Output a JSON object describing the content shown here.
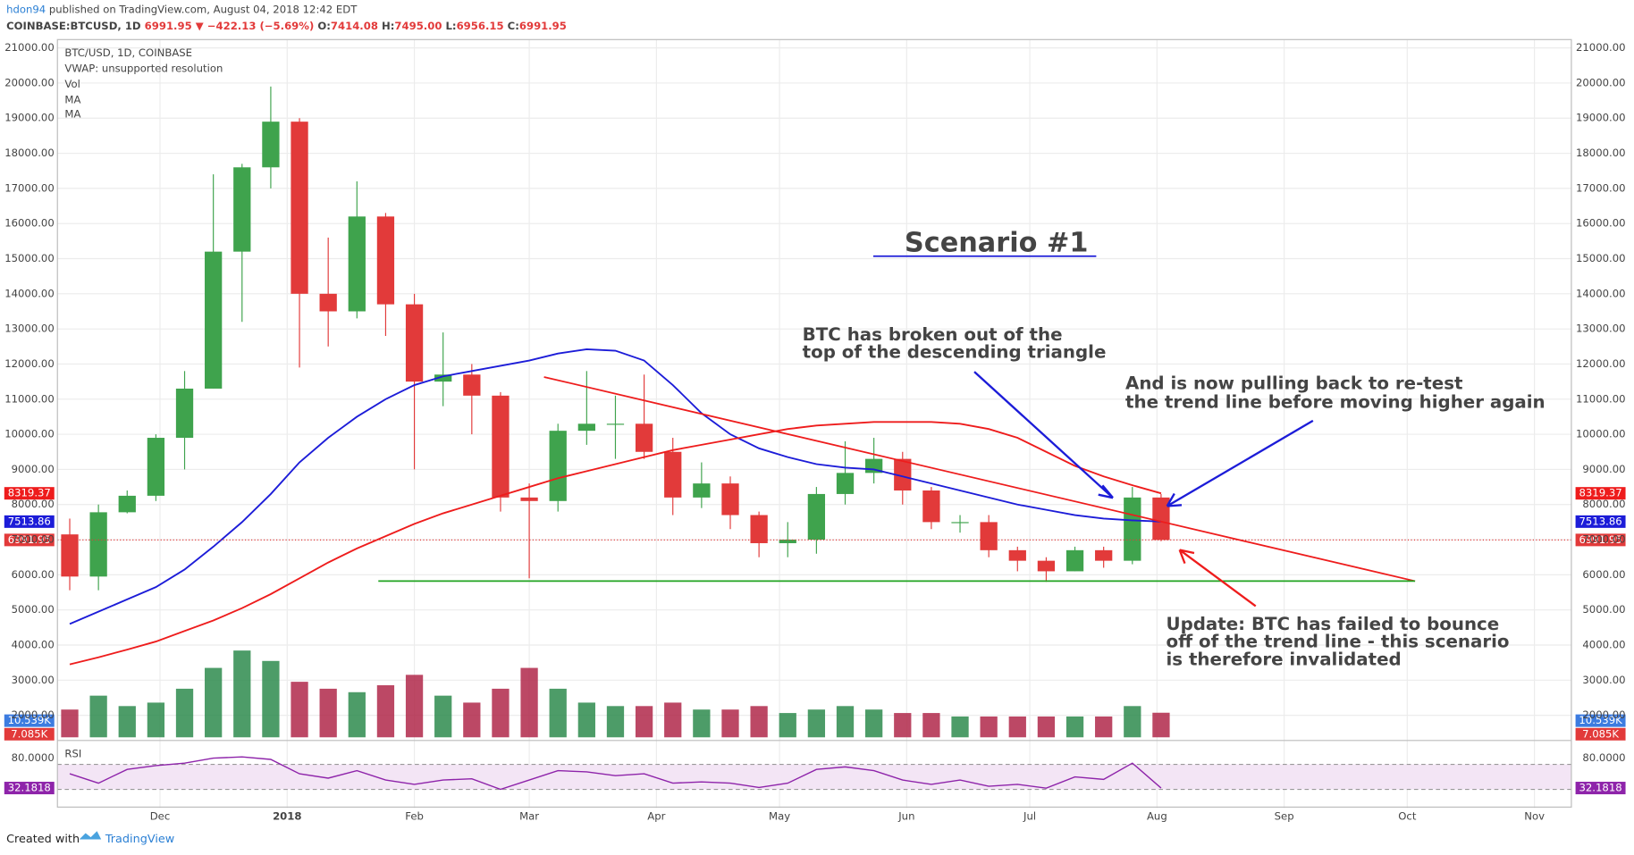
{
  "header": {
    "author": "hdon94",
    "published": "published on TradingView.com, August 04, 2018 12:42 EDT",
    "symbol": "COINBASE:BTCUSD, 1D",
    "last": "6991.95",
    "change": "▼ −422.13 (−5.69%)",
    "ohlc": [
      {
        "label": "O:",
        "value": "7414.08"
      },
      {
        "label": "H:",
        "value": "7495.00"
      },
      {
        "label": "L:",
        "value": "6956.15"
      },
      {
        "label": "C:",
        "value": "6991.95"
      }
    ]
  },
  "legend": [
    "VWAP: unsupported resolution",
    "Vol",
    "MA",
    "MA"
  ],
  "annotations": {
    "scenario": "Scenario #1",
    "broken": [
      "BTC has broken out of the",
      "top of the descending triangle"
    ],
    "pulling": [
      "And is now pulling back to re-test",
      "the trend line before moving higher again"
    ],
    "update": [
      "Update: BTC has failed to bounce",
      "off of the trend line - this scenario",
      "is therefore invalidated"
    ]
  },
  "footer": {
    "created": "Created with",
    "brand": "TradingView"
  },
  "chart_data": {
    "type": "candlestick",
    "title": "BTC/USD, 1D, COINBASE",
    "x": [
      0,
      7,
      14,
      21,
      28,
      35,
      42,
      49,
      56,
      63,
      70,
      77,
      84,
      91,
      98,
      105,
      112,
      119,
      126,
      133,
      140,
      147,
      154,
      161,
      168,
      175,
      182,
      189,
      196,
      203,
      210,
      217,
      224,
      231,
      238,
      245,
      252,
      259,
      266
    ],
    "open": [
      7150,
      5950,
      7780,
      8250,
      9900,
      11300,
      15200,
      17600,
      18900,
      14000,
      13500,
      16200,
      13700,
      11500,
      11700,
      11100,
      8200,
      8100,
      10100,
      10300,
      10300,
      9500,
      8200,
      8600,
      7700,
      6900,
      7000,
      8300,
      8900,
      9300,
      8400,
      7500,
      7500,
      6700,
      6400,
      6100,
      6700,
      6400,
      8200
    ],
    "high": [
      7600,
      8000,
      8400,
      10000,
      11800,
      17400,
      17700,
      19900,
      19000,
      15600,
      17200,
      16300,
      14000,
      12900,
      12000,
      11200,
      8600,
      10300,
      11800,
      11100,
      11700,
      9900,
      9200,
      8800,
      7800,
      7500,
      8500,
      9800,
      9900,
      9500,
      8500,
      7700,
      7700,
      6800,
      6500,
      6800,
      6800,
      8500,
      8300
    ],
    "low": [
      5560,
      5560,
      7750,
      8100,
      9000,
      11300,
      13200,
      17000,
      11900,
      12500,
      13300,
      12800,
      9000,
      10800,
      10000,
      7800,
      5900,
      7800,
      9700,
      9300,
      9300,
      7700,
      7900,
      7300,
      6500,
      6500,
      6600,
      8000,
      8600,
      8000,
      7300,
      7200,
      6500,
      6100,
      5800,
      6100,
      6200,
      6300,
      6956.15
    ],
    "close": [
      5950,
      7780,
      8250,
      9900,
      11300,
      15200,
      17600,
      18900,
      14000,
      13500,
      16200,
      13700,
      11500,
      11700,
      11100,
      8200,
      8100,
      10100,
      10300,
      10300,
      9500,
      8200,
      8600,
      7700,
      6900,
      7000,
      8300,
      8900,
      9300,
      8400,
      7500,
      7500,
      6700,
      6400,
      6100,
      6700,
      6400,
      8200,
      6991.95
    ],
    "up_color": "#3fa34d",
    "down_color": "#e23a3a",
    "series": [
      {
        "name": "MA",
        "color": "#1c1cd8",
        "values": [
          4600,
          4950,
          5300,
          5650,
          6150,
          6800,
          7500,
          8300,
          9200,
          9900,
          10500,
          11000,
          11400,
          11650,
          11800,
          11950,
          12100,
          12300,
          12420,
          12380,
          12100,
          11400,
          10600,
          10000,
          9600,
          9350,
          9150,
          9050,
          9000,
          8800,
          8600,
          8400,
          8200,
          8000,
          7850,
          7700,
          7600,
          7550,
          7513.86
        ]
      },
      {
        "name": "MA",
        "color": "#ee1c1c",
        "values": [
          3450,
          3650,
          3870,
          4100,
          4400,
          4700,
          5050,
          5450,
          5900,
          6350,
          6750,
          7100,
          7450,
          7750,
          8000,
          8250,
          8500,
          8750,
          8950,
          9150,
          9350,
          9550,
          9700,
          9850,
          10000,
          10150,
          10250,
          10300,
          10350,
          10350,
          10350,
          10300,
          10150,
          9900,
          9500,
          9100,
          8800,
          8550,
          8319.37
        ]
      }
    ],
    "volume": {
      "values": [
        8,
        12,
        9,
        10,
        14,
        20,
        25,
        22,
        16,
        14,
        13,
        15,
        18,
        12,
        10,
        14,
        20,
        14,
        10,
        9,
        9,
        10,
        8,
        8,
        9,
        7,
        8,
        9,
        8,
        7,
        7,
        6,
        6,
        6,
        6,
        6,
        6,
        9,
        7.085
      ],
      "ylim": [
        0,
        45
      ],
      "up_color": "#2e8b4e",
      "down_color": "#b0284a",
      "labels": [
        {
          "value": 10.539,
          "label": "10.539K"
        },
        {
          "value": 7.085,
          "label": "7.085K"
        }
      ]
    },
    "rsi": {
      "name": "RSI",
      "values": [
        55,
        40,
        62,
        68,
        72,
        80,
        82,
        78,
        55,
        48,
        60,
        45,
        38,
        45,
        47,
        30,
        45,
        60,
        58,
        52,
        55,
        40,
        42,
        40,
        33,
        40,
        62,
        66,
        60,
        45,
        38,
        45,
        35,
        38,
        32,
        50,
        46,
        72,
        32.1818
      ],
      "ylim": [
        0,
        100
      ],
      "bands": [
        30,
        70
      ],
      "yticks": [
        {
          "value": 80,
          "label": "80.0000"
        }
      ],
      "color": "#8e24aa"
    },
    "xlim": [
      0,
      369
    ],
    "xticks": [
      {
        "value": 25,
        "label": "Dec"
      },
      {
        "value": 56,
        "label": "2018"
      },
      {
        "value": 87,
        "label": "Feb"
      },
      {
        "value": 115,
        "label": "Mar"
      },
      {
        "value": 146,
        "label": "Apr"
      },
      {
        "value": 176,
        "label": "May"
      },
      {
        "value": 207,
        "label": "Jun"
      },
      {
        "value": 237,
        "label": "Jul"
      },
      {
        "value": 268,
        "label": "Aug"
      },
      {
        "value": 299,
        "label": "Sep"
      },
      {
        "value": 329,
        "label": "Oct"
      },
      {
        "value": 360,
        "label": "Nov"
      }
    ],
    "ylim": [
      1373,
      21237
    ],
    "yticks": [
      {
        "value": 2000,
        "label": "2000.00"
      },
      {
        "value": 3000,
        "label": "3000.00"
      },
      {
        "value": 4000,
        "label": "4000.00"
      },
      {
        "value": 5000,
        "label": "5000.00"
      },
      {
        "value": 6000,
        "label": "6000.00"
      },
      {
        "value": 7000,
        "label": "7000.00"
      },
      {
        "value": 8000,
        "label": "8000.00"
      },
      {
        "value": 9000,
        "label": "9000.00"
      },
      {
        "value": 10000,
        "label": "10000.00"
      },
      {
        "value": 11000,
        "label": "11000.00"
      },
      {
        "value": 12000,
        "label": "12000.00"
      },
      {
        "value": 13000,
        "label": "13000.00"
      },
      {
        "value": 14000,
        "label": "14000.00"
      },
      {
        "value": 15000,
        "label": "15000.00"
      },
      {
        "value": 16000,
        "label": "16000.00"
      },
      {
        "value": 17000,
        "label": "17000.00"
      },
      {
        "value": 18000,
        "label": "18000.00"
      },
      {
        "value": 19000,
        "label": "19000.00"
      },
      {
        "value": 20000,
        "label": "20000.00"
      },
      {
        "value": 21000,
        "label": "21000.00"
      }
    ],
    "grid": true
  }
}
